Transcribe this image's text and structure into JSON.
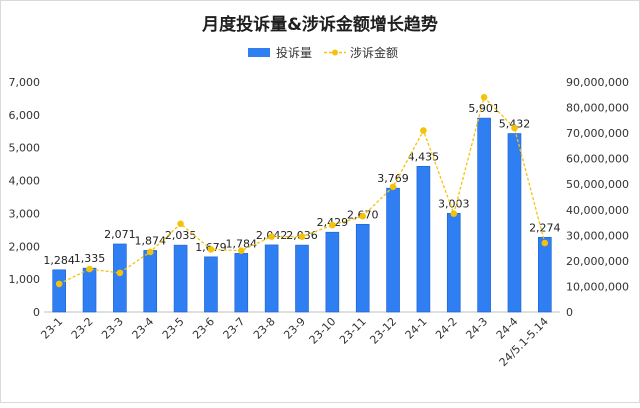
{
  "chart_data": {
    "type": "bar",
    "title": "月度投诉量&涉诉金额增长趋势",
    "legend_position": "top-center",
    "categories": [
      "23-1",
      "23-2",
      "23-3",
      "23-4",
      "23-5",
      "23-6",
      "23-7",
      "23-8",
      "23-9",
      "23-10",
      "23-11",
      "23-12",
      "24-1",
      "24-2",
      "24-3",
      "24-4",
      "24/5.1-5.14"
    ],
    "series": [
      {
        "name": "投诉量",
        "type": "bar",
        "axis": "left",
        "color": "#2f7ef2",
        "values": [
          1284,
          1335,
          2071,
          1874,
          2035,
          1679,
          1784,
          2042,
          2036,
          2429,
          2670,
          3769,
          4435,
          3003,
          5901,
          5432,
          2274
        ],
        "labels": [
          "1,284",
          "1,335",
          "2,071",
          "1,874",
          "2,035",
          "1,679",
          "1,784",
          "2,042",
          "2,036",
          "2,429",
          "2,670",
          "3,769",
          "4,435",
          "3,003",
          "5,901",
          "5,432",
          "2,274"
        ]
      },
      {
        "name": "涉诉金额",
        "type": "line",
        "axis": "right",
        "style": "dashed",
        "color": "#f5c20b",
        "values": [
          11000000,
          16800000,
          15300000,
          23500000,
          34500000,
          24500000,
          24000000,
          29500000,
          29500000,
          34000000,
          37500000,
          49000000,
          71000000,
          38500000,
          84000000,
          72000000,
          27000000
        ]
      }
    ],
    "y_left": {
      "min": 0,
      "max": 7000,
      "ticks": [
        "0",
        "1,000",
        "2,000",
        "3,000",
        "4,000",
        "5,000",
        "6,000",
        "7,000"
      ]
    },
    "y_right": {
      "min": 0,
      "max": 90000000,
      "ticks": [
        "0",
        "10,000,000",
        "20,000,000",
        "30,000,000",
        "40,000,000",
        "50,000,000",
        "60,000,000",
        "70,000,000",
        "80,000,000",
        "90,000,000"
      ]
    },
    "grid": false
  }
}
